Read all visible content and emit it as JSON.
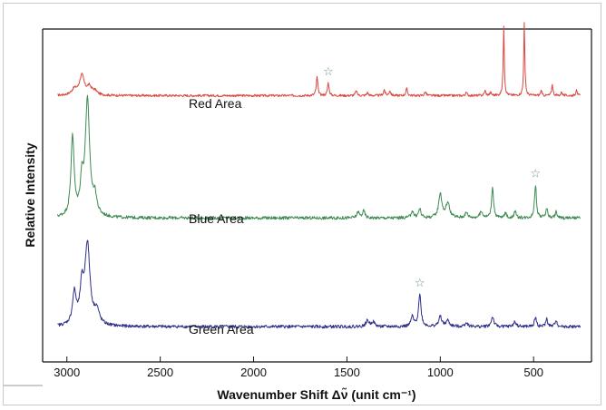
{
  "chart_data": {
    "type": "line",
    "xlabel": "Wavenumber Shift Δν̃ (unit cm⁻¹)",
    "ylabel": "Relative Intensity",
    "xlim": [
      3130,
      190
    ],
    "x_reversed": true,
    "x_ticks": [
      3000,
      2500,
      2000,
      1500,
      1000,
      500
    ],
    "x_tick_labels": [
      "3000",
      "2500",
      "2000",
      "1500",
      "1000",
      "500"
    ],
    "ylim": [
      0,
      3.4
    ],
    "y_ticks_shown": false,
    "grid": false,
    "legend": "none",
    "marker_symbol": "☆",
    "series": [
      {
        "name": "Red Area",
        "color": "#d9473f",
        "baseline": 2.72,
        "noise": 0.012,
        "peaks": [
          [
            2960,
            0.06,
            18
          ],
          [
            2920,
            0.2,
            15
          ],
          [
            2880,
            0.08,
            15
          ],
          [
            2850,
            0.04,
            15
          ],
          [
            1660,
            0.19,
            5
          ],
          [
            1600,
            0.13,
            5
          ],
          [
            1450,
            0.05,
            5
          ],
          [
            1390,
            0.03,
            5
          ],
          [
            1300,
            0.06,
            5
          ],
          [
            1270,
            0.05,
            5
          ],
          [
            1180,
            0.07,
            5
          ],
          [
            1080,
            0.04,
            5
          ],
          [
            860,
            0.03,
            5
          ],
          [
            760,
            0.05,
            5
          ],
          [
            730,
            0.03,
            5
          ],
          [
            660,
            0.72,
            3.5
          ],
          [
            550,
            0.74,
            3.5
          ],
          [
            460,
            0.05,
            4
          ],
          [
            400,
            0.12,
            4
          ],
          [
            350,
            0.04,
            4
          ],
          [
            270,
            0.07,
            4
          ]
        ],
        "star_at": 1600
      },
      {
        "name": "Blue Area",
        "color": "#3f8a52",
        "baseline": 1.47,
        "noise": 0.016,
        "peaks": [
          [
            2970,
            0.82,
            10
          ],
          [
            2920,
            0.32,
            10
          ],
          [
            2890,
            1.18,
            14
          ],
          [
            2850,
            0.18,
            12
          ],
          [
            1440,
            0.06,
            8
          ],
          [
            1410,
            0.07,
            8
          ],
          [
            1150,
            0.07,
            8
          ],
          [
            1110,
            0.09,
            8
          ],
          [
            1000,
            0.25,
            10
          ],
          [
            960,
            0.15,
            12
          ],
          [
            860,
            0.05,
            10
          ],
          [
            780,
            0.06,
            10
          ],
          [
            720,
            0.32,
            6
          ],
          [
            650,
            0.05,
            6
          ],
          [
            600,
            0.07,
            6
          ],
          [
            490,
            0.34,
            6
          ],
          [
            430,
            0.1,
            6
          ],
          [
            380,
            0.06,
            6
          ]
        ],
        "star_at": 490
      },
      {
        "name": "Green Area",
        "color": "#2e2f8a",
        "baseline": 0.36,
        "noise": 0.016,
        "peaks": [
          [
            2960,
            0.32,
            12
          ],
          [
            2920,
            0.35,
            12
          ],
          [
            2890,
            0.82,
            16
          ],
          [
            2840,
            0.14,
            16
          ],
          [
            1390,
            0.06,
            10
          ],
          [
            1360,
            0.05,
            10
          ],
          [
            1110,
            0.33,
            8
          ],
          [
            1150,
            0.1,
            8
          ],
          [
            1000,
            0.1,
            10
          ],
          [
            960,
            0.06,
            10
          ],
          [
            860,
            0.04,
            10
          ],
          [
            720,
            0.1,
            8
          ],
          [
            600,
            0.05,
            8
          ],
          [
            490,
            0.1,
            6
          ],
          [
            430,
            0.08,
            6
          ],
          [
            380,
            0.07,
            6
          ]
        ],
        "star_at": 1110
      }
    ]
  }
}
